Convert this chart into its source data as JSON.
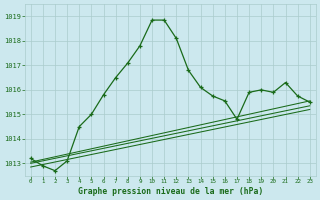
{
  "title": "Graphe pression niveau de la mer (hPa)",
  "background_color": "#cce8ee",
  "grid_color": "#aacccc",
  "line_color": "#1a6b1a",
  "x_ticks": [
    0,
    1,
    2,
    3,
    4,
    5,
    6,
    7,
    8,
    9,
    10,
    11,
    12,
    13,
    14,
    15,
    16,
    17,
    18,
    19,
    20,
    21,
    22,
    23
  ],
  "ylim": [
    1012.5,
    1019.5
  ],
  "yticks": [
    1013,
    1014,
    1015,
    1016,
    1017,
    1018,
    1019
  ],
  "series1": [
    1013.2,
    1012.9,
    1012.7,
    1013.1,
    1014.5,
    1015.0,
    1015.8,
    1016.5,
    1017.1,
    1017.8,
    1018.85,
    1018.85,
    1018.1,
    1016.8,
    1016.1,
    1015.75,
    1015.55,
    1014.8,
    1015.9,
    1016.0,
    1015.9,
    1016.3,
    1015.75,
    1015.5
  ],
  "trend1_x": [
    0,
    23
  ],
  "trend1_y": [
    1013.05,
    1015.55
  ],
  "trend2_x": [
    0,
    23
  ],
  "trend2_y": [
    1013.0,
    1015.35
  ],
  "trend3_x": [
    0,
    23
  ],
  "trend3_y": [
    1012.85,
    1015.2
  ]
}
